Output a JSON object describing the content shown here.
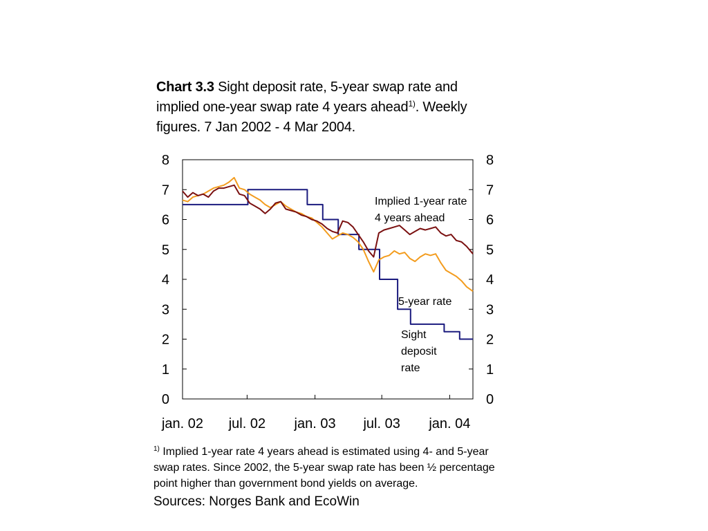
{
  "title": {
    "label": "Chart 3.3",
    "text_before_sup": "Sight deposit rate, 5-year swap rate and implied one-year swap rate 4 years ahead",
    "sup": "1)",
    "text_after_sup": ". Weekly figures. 7 Jan 2002 -  4 Mar 2004."
  },
  "footnote": {
    "sup": "1)",
    "text": "Implied 1-year rate 4 years ahead is estimated using 4- and 5-year swap rates. Since 2002, the 5-year swap rate has been ½ percentage point higher than government bond yields on average."
  },
  "sources": "Sources: Norges Bank and EcoWin",
  "chart_data": {
    "type": "line",
    "title": "",
    "xlabel": "",
    "ylabel": "",
    "x_range": [
      "2002-01-07",
      "2004-03-04"
    ],
    "ylim": [
      0,
      8
    ],
    "y_ticks": [
      "0",
      "1",
      "2",
      "3",
      "4",
      "5",
      "6",
      "7",
      "8"
    ],
    "x_tick_labels": [
      {
        "date": "2002-01-07",
        "label": "jan. 02"
      },
      {
        "date": "2002-07-01",
        "label": "jul. 02"
      },
      {
        "date": "2003-01-01",
        "label": "jan. 03"
      },
      {
        "date": "2003-07-01",
        "label": "jul. 03"
      },
      {
        "date": "2004-01-01",
        "label": "jan. 04"
      }
    ],
    "grid": false,
    "secondary_y_axis": true,
    "series": [
      {
        "name": "Sight deposit rate",
        "label_lines": [
          "Sight",
          "deposit",
          "rate"
        ],
        "color": "#1a1a7e",
        "step": true,
        "points": [
          [
            "2002-01-07",
            6.5
          ],
          [
            "2002-07-03",
            7.0
          ],
          [
            "2002-12-11",
            6.5
          ],
          [
            "2003-01-22",
            6.0
          ],
          [
            "2003-03-05",
            5.5
          ],
          [
            "2003-04-30",
            5.0
          ],
          [
            "2003-06-25",
            4.0
          ],
          [
            "2003-08-13",
            3.0
          ],
          [
            "2003-09-17",
            2.5
          ],
          [
            "2003-12-17",
            2.25
          ],
          [
            "2004-01-28",
            2.0
          ],
          [
            "2004-03-04",
            2.0
          ]
        ]
      },
      {
        "name": "5-year rate",
        "label_lines": [
          "5-year rate"
        ],
        "color": "#f39c1e",
        "points": [
          [
            "2002-01-07",
            6.65
          ],
          [
            "2002-01-21",
            6.6
          ],
          [
            "2002-02-04",
            6.75
          ],
          [
            "2002-02-18",
            6.8
          ],
          [
            "2002-03-04",
            6.85
          ],
          [
            "2002-03-18",
            6.95
          ],
          [
            "2002-04-01",
            7.05
          ],
          [
            "2002-04-15",
            7.1
          ],
          [
            "2002-04-29",
            7.15
          ],
          [
            "2002-05-13",
            7.25
          ],
          [
            "2002-05-27",
            7.4
          ],
          [
            "2002-06-10",
            7.05
          ],
          [
            "2002-06-24",
            7.0
          ],
          [
            "2002-07-08",
            6.85
          ],
          [
            "2002-07-22",
            6.75
          ],
          [
            "2002-08-05",
            6.65
          ],
          [
            "2002-08-19",
            6.5
          ],
          [
            "2002-09-02",
            6.4
          ],
          [
            "2002-09-16",
            6.5
          ],
          [
            "2002-09-30",
            6.6
          ],
          [
            "2002-10-14",
            6.45
          ],
          [
            "2002-10-28",
            6.35
          ],
          [
            "2002-11-11",
            6.25
          ],
          [
            "2002-11-25",
            6.2
          ],
          [
            "2002-12-09",
            6.1
          ],
          [
            "2002-12-23",
            6.05
          ],
          [
            "2003-01-06",
            5.9
          ],
          [
            "2003-01-20",
            5.75
          ],
          [
            "2003-02-03",
            5.55
          ],
          [
            "2003-02-17",
            5.35
          ],
          [
            "2003-03-03",
            5.45
          ],
          [
            "2003-03-17",
            5.55
          ],
          [
            "2003-03-31",
            5.5
          ],
          [
            "2003-04-14",
            5.4
          ],
          [
            "2003-04-28",
            5.25
          ],
          [
            "2003-05-12",
            5.0
          ],
          [
            "2003-05-26",
            4.6
          ],
          [
            "2003-06-09",
            4.25
          ],
          [
            "2003-06-23",
            4.65
          ],
          [
            "2003-07-07",
            4.75
          ],
          [
            "2003-07-21",
            4.8
          ],
          [
            "2003-08-04",
            4.95
          ],
          [
            "2003-08-18",
            4.85
          ],
          [
            "2003-09-01",
            4.9
          ],
          [
            "2003-09-15",
            4.7
          ],
          [
            "2003-09-29",
            4.6
          ],
          [
            "2003-10-13",
            4.75
          ],
          [
            "2003-10-27",
            4.85
          ],
          [
            "2003-11-10",
            4.8
          ],
          [
            "2003-11-24",
            4.85
          ],
          [
            "2003-12-08",
            4.55
          ],
          [
            "2003-12-22",
            4.3
          ],
          [
            "2004-01-05",
            4.2
          ],
          [
            "2004-01-19",
            4.1
          ],
          [
            "2004-02-02",
            3.95
          ],
          [
            "2004-02-16",
            3.75
          ],
          [
            "2004-03-04",
            3.6
          ]
        ]
      },
      {
        "name": "Implied 1-year rate 4 years ahead",
        "label_lines": [
          "Implied 1-year rate",
          "4 years ahead"
        ],
        "color": "#7a1010",
        "points": [
          [
            "2002-01-07",
            6.95
          ],
          [
            "2002-01-21",
            6.75
          ],
          [
            "2002-02-04",
            6.9
          ],
          [
            "2002-02-18",
            6.8
          ],
          [
            "2002-03-04",
            6.85
          ],
          [
            "2002-03-18",
            6.75
          ],
          [
            "2002-04-01",
            6.95
          ],
          [
            "2002-04-15",
            7.05
          ],
          [
            "2002-04-29",
            7.05
          ],
          [
            "2002-05-13",
            7.1
          ],
          [
            "2002-05-27",
            7.15
          ],
          [
            "2002-06-10",
            6.85
          ],
          [
            "2002-06-24",
            6.8
          ],
          [
            "2002-07-08",
            6.55
          ],
          [
            "2002-07-22",
            6.45
          ],
          [
            "2002-08-05",
            6.35
          ],
          [
            "2002-08-19",
            6.2
          ],
          [
            "2002-09-02",
            6.35
          ],
          [
            "2002-09-16",
            6.55
          ],
          [
            "2002-09-30",
            6.6
          ],
          [
            "2002-10-14",
            6.35
          ],
          [
            "2002-10-28",
            6.3
          ],
          [
            "2002-11-11",
            6.25
          ],
          [
            "2002-11-25",
            6.15
          ],
          [
            "2002-12-09",
            6.1
          ],
          [
            "2002-12-23",
            6.0
          ],
          [
            "2003-01-06",
            5.95
          ],
          [
            "2003-01-20",
            5.85
          ],
          [
            "2003-02-03",
            5.7
          ],
          [
            "2003-02-17",
            5.6
          ],
          [
            "2003-03-03",
            5.55
          ],
          [
            "2003-03-17",
            5.95
          ],
          [
            "2003-03-31",
            5.9
          ],
          [
            "2003-04-14",
            5.75
          ],
          [
            "2003-04-28",
            5.5
          ],
          [
            "2003-05-12",
            5.25
          ],
          [
            "2003-05-26",
            4.95
          ],
          [
            "2003-06-09",
            4.75
          ],
          [
            "2003-06-23",
            5.55
          ],
          [
            "2003-07-07",
            5.65
          ],
          [
            "2003-07-21",
            5.7
          ],
          [
            "2003-08-04",
            5.75
          ],
          [
            "2003-08-18",
            5.8
          ],
          [
            "2003-09-01",
            5.65
          ],
          [
            "2003-09-15",
            5.5
          ],
          [
            "2003-09-29",
            5.6
          ],
          [
            "2003-10-13",
            5.7
          ],
          [
            "2003-10-27",
            5.65
          ],
          [
            "2003-11-10",
            5.7
          ],
          [
            "2003-11-24",
            5.75
          ],
          [
            "2003-12-08",
            5.55
          ],
          [
            "2003-12-22",
            5.45
          ],
          [
            "2004-01-05",
            5.5
          ],
          [
            "2004-01-19",
            5.3
          ],
          [
            "2004-02-02",
            5.25
          ],
          [
            "2004-02-16",
            5.1
          ],
          [
            "2004-03-04",
            4.85
          ]
        ]
      }
    ]
  }
}
